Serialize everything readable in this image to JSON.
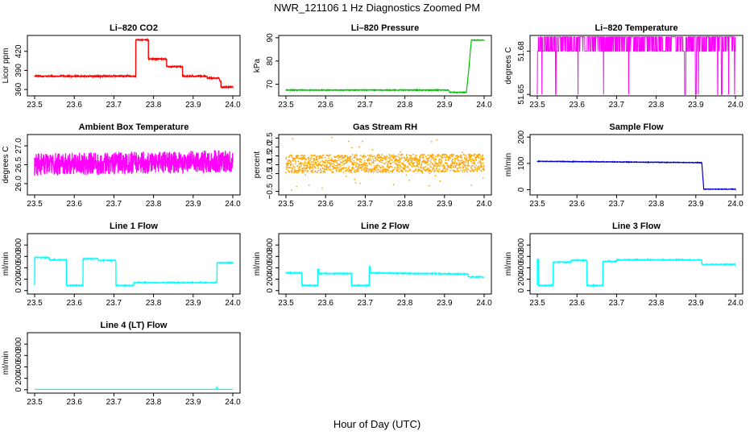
{
  "figure": {
    "title": "NWR_121106  1 Hz Diagnostics Zoomed PM",
    "xlabel": "Hour of Day (UTC)"
  },
  "chart_data": [
    {
      "type": "line",
      "title": "Li–820 CO2",
      "xlabel": "",
      "ylabel": "Licor ppm",
      "xlim": [
        23.5,
        24.0
      ],
      "ylim": [
        350,
        445
      ],
      "xticks": [
        "23.5",
        "23.6",
        "23.7",
        "23.8",
        "23.9",
        "24.0"
      ],
      "yticks": [
        "360",
        "390",
        "420"
      ],
      "color": "#ff0000",
      "noise": 1,
      "series": [
        {
          "x": [
            23.5,
            23.755,
            23.755,
            23.787,
            23.787,
            23.833,
            23.833,
            23.873,
            23.873,
            23.935,
            23.935,
            23.965,
            23.968,
            23.97,
            23.97,
            24.0
          ],
          "y": [
            381,
            381,
            438,
            438,
            408,
            408,
            396,
            396,
            381,
            381,
            378,
            378,
            373,
            373,
            364,
            364
          ]
        }
      ]
    },
    {
      "type": "line",
      "title": "Li–820 Pressure",
      "xlabel": "",
      "ylabel": "kPa",
      "xlim": [
        23.5,
        24.0
      ],
      "ylim": [
        65,
        91
      ],
      "xticks": [
        "23.5",
        "23.6",
        "23.7",
        "23.8",
        "23.9",
        "24.0"
      ],
      "yticks": [
        "70",
        "80",
        "90"
      ],
      "color": "#00c000",
      "noise": 0.15,
      "series": [
        {
          "x": [
            23.5,
            23.91,
            23.913,
            23.955,
            23.96,
            23.965,
            23.968,
            23.975,
            24.0
          ],
          "y": [
            67.5,
            67.5,
            66.5,
            66.5,
            74,
            84,
            89,
            89,
            89
          ]
        }
      ]
    },
    {
      "type": "line",
      "title": "Li–820 Temperature",
      "xlabel": "",
      "ylabel": "degrees C",
      "xlim": [
        23.5,
        24.0
      ],
      "ylim": [
        51.649,
        51.691
      ],
      "xticks": [
        "23.5",
        "23.6",
        "23.7",
        "23.8",
        "23.9",
        "24.0"
      ],
      "yticks": [
        "51.65",
        "51.68"
      ],
      "color": "#ff00ff",
      "noise": 0,
      "levels": [
        51.65,
        51.68,
        51.69
      ]
    },
    {
      "type": "line",
      "title": "Ambient Box Temperature",
      "xlabel": "",
      "ylabel": "degrees C",
      "xlim": [
        23.5,
        24.0
      ],
      "ylim": [
        25.7,
        27.3
      ],
      "xticks": [
        "23.5",
        "23.6",
        "23.7",
        "23.8",
        "23.9",
        "24.0"
      ],
      "yticks": [
        "26.0",
        "26.5",
        "27.0"
      ],
      "color": "#ff00ff",
      "noise": 0.3,
      "series": [
        {
          "x": [
            23.5,
            24.0
          ],
          "y": [
            26.5,
            26.6
          ]
        }
      ]
    },
    {
      "type": "scatter",
      "title": "Gas Stream RH",
      "xlabel": "",
      "ylabel": "percent",
      "xlim": [
        23.5,
        24.0
      ],
      "ylim": [
        -0.7,
        2.7
      ],
      "xticks": [
        "23.5",
        "23.6",
        "23.7",
        "23.8",
        "23.9",
        "24.0"
      ],
      "yticks": [
        "−0.5",
        "0.5",
        "1.0",
        "1.5",
        "2.0",
        "2.5"
      ],
      "color": "#ffa500",
      "noise": 0.5,
      "series": [
        {
          "x": [
            23.5,
            24.0
          ],
          "y": [
            1.05,
            1.1
          ]
        }
      ]
    },
    {
      "type": "line",
      "title": "Sample Flow",
      "xlabel": "",
      "ylabel": "ml/min",
      "xlim": [
        23.5,
        24.0
      ],
      "ylim": [
        -20,
        210
      ],
      "xticks": [
        "23.5",
        "23.6",
        "23.7",
        "23.8",
        "23.9",
        "24.0"
      ],
      "yticks": [
        "0",
        "100",
        "200"
      ],
      "color": "#0000cd",
      "noise": 1,
      "series": [
        {
          "x": [
            23.5,
            23.915,
            23.92,
            24.0
          ],
          "y": [
            108,
            103,
            2,
            2
          ]
        }
      ]
    },
    {
      "type": "line",
      "title": "Line 1 Flow",
      "xlabel": "",
      "ylabel": "ml/min",
      "xlim": [
        23.5,
        24.0
      ],
      "ylim": [
        -60,
        1000
      ],
      "xticks": [
        "23.5",
        "23.6",
        "23.7",
        "23.8",
        "23.9",
        "24.0"
      ],
      "yticks": [
        "0",
        "200",
        "400",
        "600",
        "800"
      ],
      "color": "#00ffff",
      "noise": 8,
      "series": [
        {
          "x": [
            23.5,
            23.5,
            23.537,
            23.537,
            23.58,
            23.58,
            23.622,
            23.622,
            23.66,
            23.66,
            23.705,
            23.705,
            23.75,
            23.75,
            23.96,
            23.96,
            24.0
          ],
          "y": [
            100,
            580,
            580,
            540,
            540,
            90,
            90,
            560,
            560,
            530,
            530,
            90,
            90,
            140,
            140,
            490,
            490
          ]
        }
      ]
    },
    {
      "type": "line",
      "title": "Line 2 Flow",
      "xlabel": "",
      "ylabel": "ml/min",
      "xlim": [
        23.5,
        24.0
      ],
      "ylim": [
        -60,
        1000
      ],
      "xticks": [
        "23.5",
        "23.6",
        "23.7",
        "23.8",
        "23.9",
        "24.0"
      ],
      "yticks": [
        "0",
        "200",
        "400",
        "600",
        "800"
      ],
      "color": "#00ffff",
      "noise": 8,
      "series": [
        {
          "x": [
            23.5,
            23.54,
            23.54,
            23.58,
            23.58,
            23.583,
            23.583,
            23.665,
            23.665,
            23.71,
            23.71,
            23.713,
            23.713,
            23.96,
            23.96,
            24.0
          ],
          "y": [
            310,
            310,
            90,
            90,
            380,
            380,
            300,
            300,
            90,
            90,
            420,
            420,
            310,
            290,
            240,
            240
          ]
        }
      ]
    },
    {
      "type": "line",
      "title": "Line 3 Flow",
      "xlabel": "",
      "ylabel": "ml/min",
      "xlim": [
        23.5,
        24.0
      ],
      "ylim": [
        -60,
        1000
      ],
      "xticks": [
        "23.5",
        "23.6",
        "23.7",
        "23.8",
        "23.9",
        "24.0"
      ],
      "yticks": [
        "0",
        "200",
        "400",
        "600",
        "800"
      ],
      "color": "#00ffff",
      "noise": 8,
      "series": [
        {
          "x": [
            23.5,
            23.5,
            23.503,
            23.503,
            23.54,
            23.54,
            23.585,
            23.585,
            23.625,
            23.625,
            23.665,
            23.665,
            23.7,
            23.7,
            23.915,
            23.915,
            24.0
          ],
          "y": [
            100,
            550,
            550,
            90,
            90,
            500,
            500,
            530,
            530,
            90,
            90,
            510,
            510,
            540,
            540,
            460,
            460
          ]
        }
      ]
    },
    {
      "type": "line",
      "title": "Line 4 (LT) Flow",
      "xlabel": "",
      "ylabel": "ml/min",
      "xlim": [
        23.5,
        24.0
      ],
      "ylim": [
        -60,
        1000
      ],
      "xticks": [
        "23.5",
        "23.6",
        "23.7",
        "23.8",
        "23.9",
        "24.0"
      ],
      "yticks": [
        "0",
        "200",
        "400",
        "600",
        "800"
      ],
      "color": "#00ffff",
      "noise": 0,
      "series": [
        {
          "x": [
            23.5,
            23.958,
            23.96,
            23.962,
            24.0
          ],
          "y": [
            5,
            5,
            60,
            5,
            5
          ]
        }
      ]
    }
  ]
}
